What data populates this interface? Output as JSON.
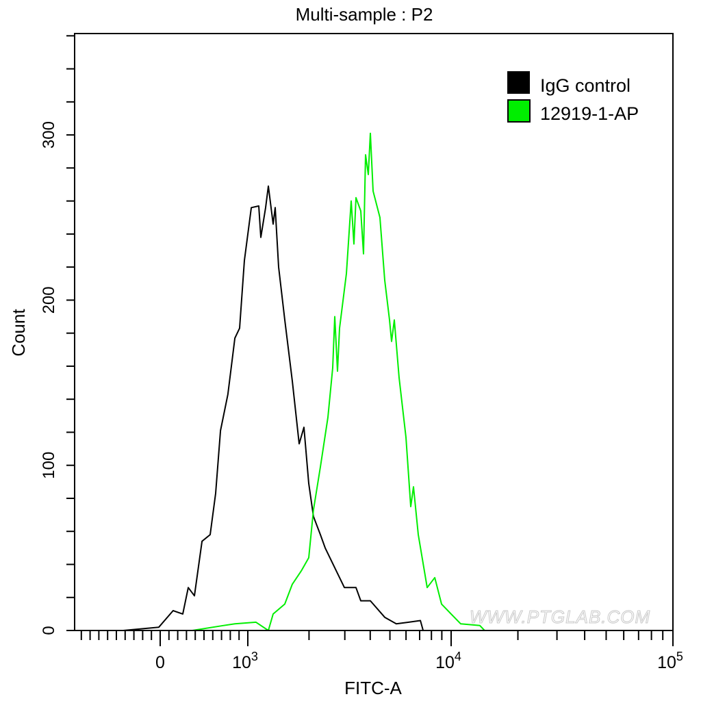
{
  "chart_data": {
    "type": "line",
    "title": "Multi-sample : P2",
    "xlabel": "FITC-A",
    "ylabel": "Count",
    "x_scale": "biexponential",
    "xlim": [
      -1000,
      100000
    ],
    "ylim": [
      0,
      362
    ],
    "x_tick_labels": [
      {
        "value": 0,
        "label": "0",
        "exp": ""
      },
      {
        "value": 1000,
        "label": "10",
        "exp": "3"
      },
      {
        "value": 10000,
        "label": "10",
        "exp": "4"
      },
      {
        "value": 100000,
        "label": "10",
        "exp": "5"
      }
    ],
    "y_tick_labels": [
      "0",
      "100",
      "200",
      "300"
    ],
    "y_ticks": [
      0,
      100,
      200,
      300
    ],
    "grid": false,
    "legend_placement": "top-right",
    "watermark": "WWW.PTGLAB.COM",
    "series": [
      {
        "name": "IgG control",
        "color": "#000000",
        "points": [
          [
            -422,
            0
          ],
          [
            -16,
            2
          ],
          [
            148,
            12
          ],
          [
            258,
            10
          ],
          [
            320,
            26
          ],
          [
            391,
            21
          ],
          [
            477,
            54
          ],
          [
            570,
            58
          ],
          [
            633,
            83
          ],
          [
            688,
            121
          ],
          [
            773,
            143
          ],
          [
            852,
            177
          ],
          [
            906,
            183
          ],
          [
            961,
            224
          ],
          [
            1040,
            256
          ],
          [
            1132,
            257
          ],
          [
            1159,
            238
          ],
          [
            1223,
            256
          ],
          [
            1262,
            269
          ],
          [
            1332,
            246
          ],
          [
            1364,
            256
          ],
          [
            1417,
            220
          ],
          [
            1520,
            188
          ],
          [
            1655,
            151
          ],
          [
            1788,
            113
          ],
          [
            1888,
            123
          ],
          [
            1993,
            89
          ],
          [
            2104,
            69
          ],
          [
            2275,
            58
          ],
          [
            2401,
            50
          ],
          [
            2677,
            38
          ],
          [
            2986,
            26
          ],
          [
            3404,
            26
          ],
          [
            3595,
            18
          ],
          [
            4007,
            18
          ],
          [
            4714,
            8
          ],
          [
            5372,
            4
          ],
          [
            6189,
            5
          ],
          [
            7060,
            6
          ],
          [
            7285,
            0
          ]
        ]
      },
      {
        "name": "12919-1-AP",
        "color": "#00ee00",
        "points": [
          [
            367,
            0
          ],
          [
            719,
            3
          ],
          [
            852,
            4
          ],
          [
            1097,
            5
          ],
          [
            1262,
            0
          ],
          [
            1332,
            10
          ],
          [
            1520,
            16
          ],
          [
            1655,
            28
          ],
          [
            1831,
            36
          ],
          [
            1993,
            44
          ],
          [
            2104,
            73
          ],
          [
            2275,
            99
          ],
          [
            2477,
            129
          ],
          [
            2616,
            159
          ],
          [
            2677,
            190
          ],
          [
            2761,
            157
          ],
          [
            2826,
            183
          ],
          [
            3053,
            216
          ],
          [
            3224,
            260
          ],
          [
            3325,
            234
          ],
          [
            3404,
            262
          ],
          [
            3595,
            254
          ],
          [
            3707,
            228
          ],
          [
            3794,
            288
          ],
          [
            3914,
            276
          ],
          [
            4007,
            301
          ],
          [
            4132,
            266
          ],
          [
            4465,
            250
          ],
          [
            4714,
            212
          ],
          [
            4977,
            188
          ],
          [
            5094,
            175
          ],
          [
            5254,
            188
          ],
          [
            5548,
            153
          ],
          [
            5995,
            117
          ],
          [
            6329,
            75
          ],
          [
            6528,
            87
          ],
          [
            6893,
            58
          ],
          [
            7624,
            26
          ],
          [
            8306,
            32
          ],
          [
            8974,
            16
          ],
          [
            10000,
            10
          ],
          [
            11050,
            4
          ],
          [
            13480,
            3
          ],
          [
            14160,
            0
          ]
        ]
      }
    ]
  }
}
